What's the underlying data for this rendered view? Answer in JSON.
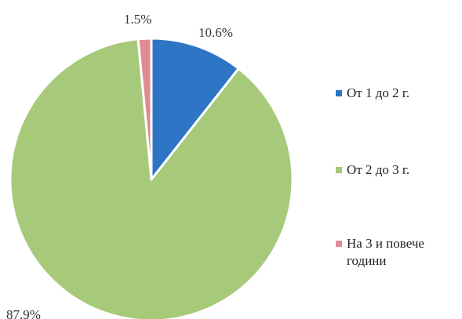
{
  "chart_data": {
    "type": "pie",
    "title": "",
    "slices": [
      {
        "label": "От 1 до 2 г.",
        "value": 10.6,
        "value_label": "10.6%",
        "color": "#2e75c6"
      },
      {
        "label": "От 2 до 3 г.",
        "value": 87.9,
        "value_label": "87.9%",
        "color": "#a6c97a"
      },
      {
        "label": "На 3 и повече години",
        "value": 1.5,
        "value_label": "1.5%",
        "color": "#e08b93"
      }
    ],
    "start_angle_deg": 0,
    "direction": "clockwise",
    "legend_position": "right"
  }
}
